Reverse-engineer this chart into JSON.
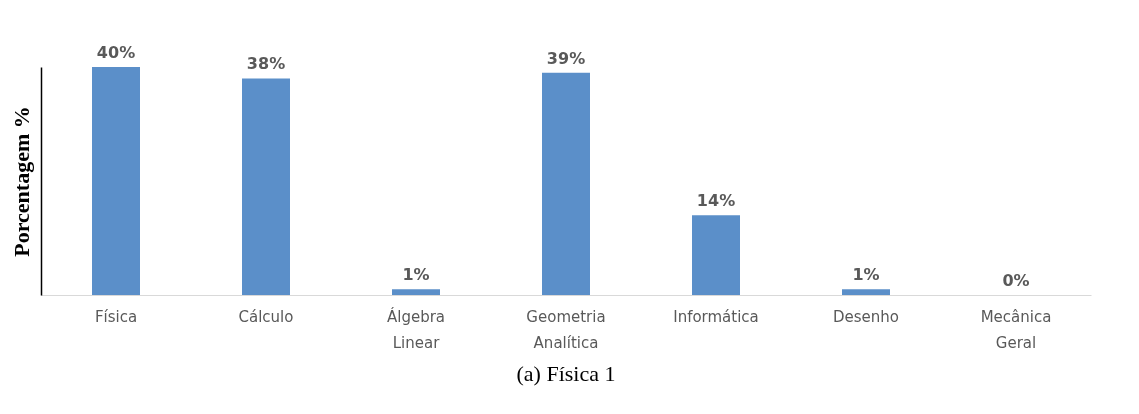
{
  "chart_data": {
    "type": "bar",
    "title": "(a)  Física 1",
    "ylabel": "Porcentagem %",
    "categories": [
      "Física",
      "Cálculo",
      "Álgebra Linear",
      "Geometria Analítica",
      "Informática",
      "Desenho",
      "Mecânica Geral"
    ],
    "values": [
      40,
      38,
      1,
      39,
      14,
      1,
      0
    ],
    "color": "#5b8fc9",
    "data_labels": true,
    "value_labels": [
      "40%",
      "38%",
      "1%",
      "39%",
      "14%",
      "1%",
      "0%"
    ]
  }
}
